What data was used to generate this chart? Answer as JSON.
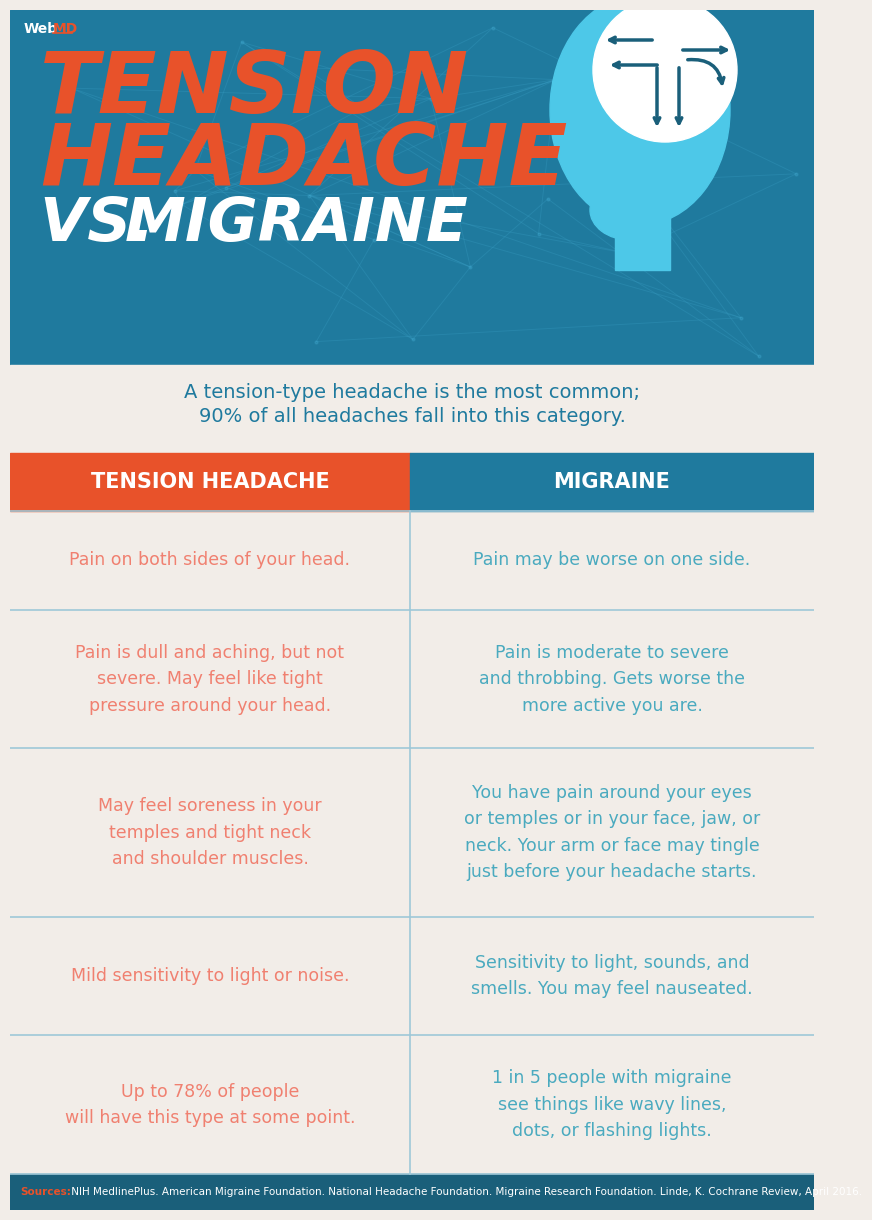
{
  "bg_header_color": "#1f7a9e",
  "bg_body_color": "#f2ede8",
  "orange_color": "#e8522a",
  "teal_color": "#1f7a9e",
  "light_orange": "#f08070",
  "light_teal": "#4aaabf",
  "white": "#ffffff",
  "footer_bg": "#1a5f7a",
  "col1_header": "TENSION HEADACHE",
  "col2_header": "MIGRAINE",
  "subtitle_line1": "A tension-type headache is the most common;",
  "subtitle_line2": "90% of all headaches fall into this category.",
  "rows": [
    {
      "tension": "Pain on both sides of your head.",
      "migraine": "Pain may be worse on one side."
    },
    {
      "tension": "Pain is dull and aching, but not\nsevere. May feel like tight\npressure around your head.",
      "migraine": "Pain is moderate to severe\nand throbbing. Gets worse the\nmore active you are."
    },
    {
      "tension": "May feel soreness in your\ntemples and tight neck\nand shoulder muscles.",
      "migraine": "You have pain around your eyes\nor temples or in your face, jaw, or\nneck. Your arm or face may tingle\njust before your headache starts."
    },
    {
      "tension": "Mild sensitivity to light or noise.",
      "migraine": "Sensitivity to light, sounds, and\nsmells. You may feel nauseated."
    },
    {
      "tension": "Up to 78% of people\nwill have this type at some point.",
      "migraine": "1 in 5 people with migraine\nsee things like wavy lines,\ndots, or flashing lights."
    }
  ],
  "footer_sources_label": "Sources:",
  "footer_sources_text": " NIH MedlinePlus. American Migraine Foundation. National Headache Foundation. Migraine Research Foundation. Linde, K. Cochrane Review, April 2016.",
  "header_line_color": "#3a9fc5",
  "divider_color": "#9fc8d8",
  "head_color": "#4dc8e8",
  "brain_color": "#ffffff",
  "arrow_color": "#1a5f7a"
}
